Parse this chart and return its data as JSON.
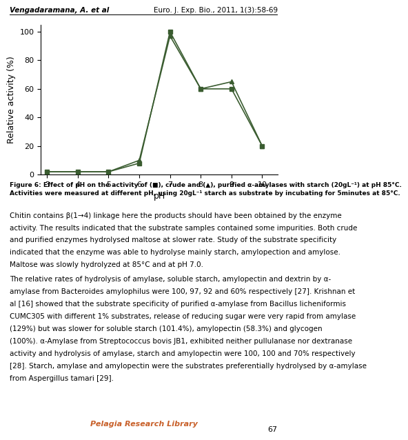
{
  "crude_x": [
    3,
    4,
    5,
    6,
    7,
    8,
    9,
    10
  ],
  "crude_y": [
    2,
    2,
    2,
    8,
    100,
    60,
    60,
    20
  ],
  "purified_x": [
    3,
    4,
    5,
    6,
    7,
    8,
    9,
    10
  ],
  "purified_y": [
    2,
    2,
    2,
    10,
    97,
    60,
    65,
    20
  ],
  "line_color": "#3a5c30",
  "xlabel": "pH",
  "ylabel": "Relative activity (%)",
  "xlim": [
    2.8,
    10.5
  ],
  "ylim": [
    0,
    105
  ],
  "xticks": [
    3,
    4,
    5,
    6,
    7,
    8,
    9,
    10
  ],
  "yticks": [
    0,
    20,
    40,
    60,
    80,
    100
  ],
  "figure_caption_line1": "Figure 6: Effect of pH on the activity of (■), crude and (▲), purified α-amylases with starch (20gL⁻¹) at pH 85°C.",
  "figure_caption_line2": "Activities were measured at different pH, using 20gL⁻¹ starch as substrate by incubating for 5minutes at 85°C.",
  "header_left": "Vengadaramana, A. et al",
  "header_right": "Euro. J. Exp. Bio., 2011, 1(3):58-69",
  "footer_text": "Pelagia Research Library",
  "page_number": "67",
  "body_text1_line1": "Chitin contains β(1→4) linkage here the products should have been obtained by the enzyme",
  "body_text1_line2": "activity. The results indicated that the substrate samples contained some impurities. Both crude",
  "body_text1_line3": "and purified enzymes hydrolysed maltose at slower rate. Study of the substrate specificity",
  "body_text1_line4": "indicated that the enzyme was able to hydrolyse mainly starch, amylopection and amylose.",
  "body_text1_line5": "Maltose was slowly hydrolyzed at 85°C and at pH 7.0.",
  "body_text2_line1": "The relative rates of hydrolysis of amylase, soluble starch, amylopectin and dextrin by α-",
  "body_text2_line2": "amylase from Bacteroides amylophilus were 100, 97, 92 and 60% respectively [27]. Krishnan et",
  "body_text2_line3": "al [16] showed that the substrate specificity of purified α-amylase from Bacillus licheniformis",
  "body_text2_line4": "CUMC305 with different 1% substrates, release of reducing sugar were very rapid from amylase",
  "body_text2_line5": "(129%) but was slower for soluble starch (101.4%), amylopectin (58.3%) and glycogen",
  "body_text2_line6": "(100%). α-Amylase from Streptococcus bovis JB1, exhibited neither pullulanase nor dextranase",
  "body_text2_line7": "activity and hydrolysis of amylase, starch and amylopectin were 100, 100 and 70% respectively",
  "body_text2_line8": "[28]. Starch, amylase and amylopectin were the substrates preferentially hydrolysed by α-amylase",
  "body_text2_line9": "from Aspergillus tamari [29]."
}
